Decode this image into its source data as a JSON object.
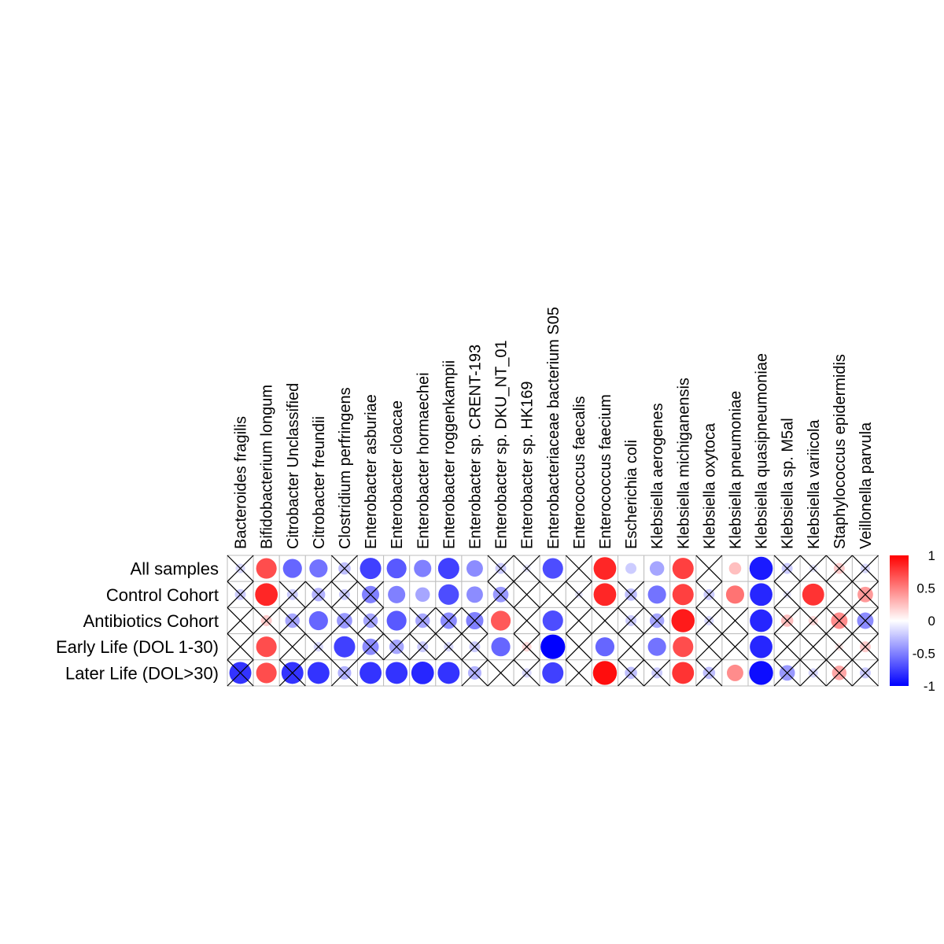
{
  "chart_data": {
    "type": "heatmap",
    "title": "",
    "subtitle": "",
    "xlabel": "",
    "ylabel": "",
    "columns": [
      "Bacteroides fragilis",
      "Bifidobacterium longum",
      "Citrobacter Unclassified",
      "Citrobacter freundii",
      "Clostridium perfringens",
      "Enterobacter asburiae",
      "Enterobacter cloacae",
      "Enterobacter hormaechei",
      "Enterobacter roggenkampii",
      "Enterobacter sp. CRENT-193",
      "Enterobacter sp. DKU_NT_01",
      "Enterobacter sp. HK169",
      "Enterobacteriaceae bacterium S05",
      "Enterococcus faecalis",
      "Enterococcus faecium",
      "Escherichia coli",
      "Klebsiella aerogenes",
      "Klebsiella michiganensis",
      "Klebsiella oxytoca",
      "Klebsiella pneumoniae",
      "Klebsiella quasipneumoniae",
      "Klebsiella sp. M5al",
      "Klebsiella variicola",
      "Staphylococcus epidermidis",
      "Veillonella parvula"
    ],
    "rows": [
      "All samples",
      "Control Cohort",
      "Antibiotics Cohort",
      "Early Life (DOL 1-30)",
      "Later Life (DOL>30)"
    ],
    "values": [
      [
        -0.15,
        0.7,
        -0.6,
        -0.55,
        -0.25,
        -0.75,
        -0.65,
        -0.5,
        -0.75,
        -0.45,
        -0.2,
        -0.1,
        -0.7,
        null,
        0.85,
        -0.2,
        -0.35,
        0.75,
        null,
        0.25,
        -0.9,
        -0.2,
        -0.1,
        0.2,
        -0.15
      ],
      [
        -0.2,
        0.85,
        -0.2,
        -0.3,
        -0.2,
        -0.5,
        -0.5,
        -0.35,
        -0.7,
        -0.45,
        -0.4,
        null,
        null,
        -0.1,
        0.85,
        -0.25,
        -0.55,
        0.75,
        -0.2,
        0.55,
        -0.85,
        -0.1,
        0.8,
        null,
        0.4
      ],
      [
        null,
        0.2,
        -0.35,
        -0.6,
        -0.4,
        -0.35,
        -0.65,
        -0.35,
        -0.45,
        -0.5,
        0.65,
        null,
        -0.7,
        null,
        null,
        -0.2,
        -0.35,
        0.9,
        -0.15,
        null,
        -0.85,
        0.25,
        0.15,
        0.45,
        -0.45
      ],
      [
        null,
        0.7,
        null,
        -0.15,
        -0.75,
        -0.45,
        -0.35,
        -0.2,
        -0.15,
        -0.2,
        -0.6,
        0.15,
        -1.0,
        null,
        -0.6,
        null,
        -0.55,
        0.7,
        null,
        null,
        -0.85,
        null,
        null,
        0.1,
        0.2
      ],
      [
        -0.8,
        0.7,
        -0.8,
        -0.8,
        -0.3,
        -0.8,
        -0.8,
        -0.85,
        -0.8,
        -0.3,
        null,
        -0.15,
        -0.75,
        null,
        0.95,
        -0.25,
        -0.2,
        0.8,
        -0.25,
        0.45,
        -0.95,
        -0.4,
        -0.15,
        0.35,
        -0.2
      ]
    ],
    "insignificant": [
      [
        true,
        false,
        false,
        false,
        true,
        false,
        false,
        false,
        false,
        false,
        true,
        true,
        false,
        true,
        false,
        false,
        false,
        false,
        true,
        false,
        false,
        true,
        true,
        true,
        true
      ],
      [
        true,
        false,
        true,
        true,
        true,
        true,
        false,
        false,
        false,
        false,
        true,
        true,
        true,
        true,
        false,
        true,
        false,
        false,
        true,
        false,
        false,
        true,
        false,
        true,
        true
      ],
      [
        true,
        true,
        true,
        false,
        true,
        true,
        false,
        true,
        true,
        true,
        false,
        true,
        false,
        true,
        true,
        true,
        true,
        false,
        true,
        true,
        false,
        true,
        true,
        true,
        true
      ],
      [
        true,
        false,
        true,
        true,
        false,
        true,
        true,
        true,
        true,
        true,
        false,
        true,
        false,
        true,
        false,
        true,
        false,
        false,
        true,
        true,
        false,
        true,
        true,
        true,
        true
      ],
      [
        true,
        false,
        true,
        false,
        true,
        false,
        false,
        false,
        false,
        true,
        true,
        true,
        false,
        true,
        false,
        true,
        true,
        false,
        true,
        false,
        false,
        true,
        true,
        true,
        true
      ]
    ],
    "legend": {
      "position": "right",
      "ticks": [
        "1",
        "0.5",
        "0",
        "-0.5",
        "-1"
      ],
      "tick_values": [
        1,
        0.5,
        0,
        -0.5,
        -1
      ],
      "range": [
        -1,
        1
      ]
    },
    "colors": {
      "positive": "#FF0000",
      "neutral": "#FFFFFF",
      "negative": "#0000FF",
      "grid": "#BEBEBE",
      "cross": "#000000"
    }
  }
}
